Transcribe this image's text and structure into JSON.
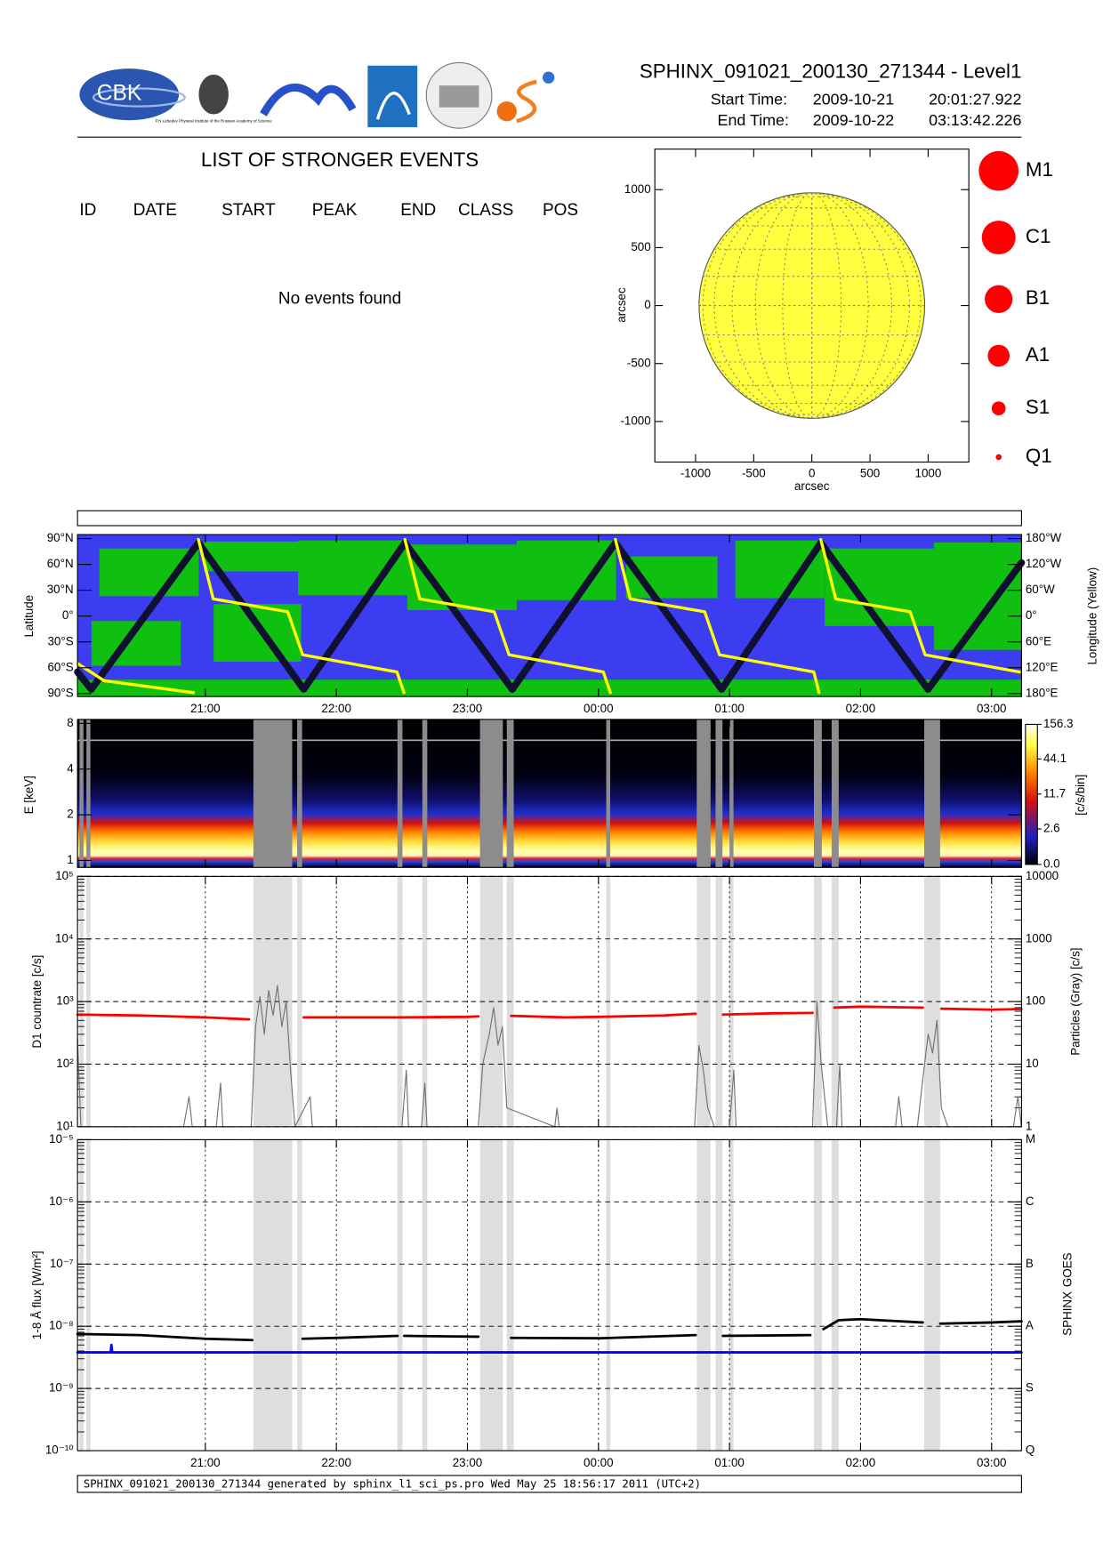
{
  "header": {
    "title": "SPHINX_091021_200130_271344 - Level1",
    "start_label": "Start Time:",
    "start_date": "2009-10-21",
    "start_time": "20:01:27.922",
    "end_label": "End Time:",
    "end_date": "2009-10-22",
    "end_time": "03:13:42.226"
  },
  "logos": {
    "cbk": "CBK",
    "lebedev": "P.N.Lebedev Physical Institute of the Russian Academy of Science"
  },
  "events": {
    "title": "LIST OF STRONGER EVENTS",
    "columns": [
      "ID",
      "DATE",
      "START",
      "PEAK",
      "END",
      "CLASS",
      "POS"
    ],
    "message": "No events found"
  },
  "chart_data": [
    {
      "type": "sun",
      "xlabel": "arcsec",
      "ylabel": "arcsec",
      "xlim": [
        -1350,
        1350
      ],
      "ylim": [
        -1350,
        1350
      ],
      "xticks": [
        -1000,
        -500,
        0,
        500,
        1000
      ],
      "yticks": [
        -1000,
        -500,
        0,
        500,
        1000
      ],
      "radius": 970,
      "disk_color": "#ffff40",
      "legend": [
        "M1",
        "C1",
        "B1",
        "A1",
        "S1",
        "Q1"
      ],
      "legend_color": "#ff0000"
    },
    {
      "type": "track",
      "ylabel": "Latitude",
      "y2label": "Longitude (Yellow)",
      "xlim": [
        "2009-10-21 20:01:27.922",
        "2009-10-22 03:13:42.226"
      ],
      "xticks": [
        {
          "value": "2009-10-21 21:00",
          "label": "21:00"
        },
        {
          "value": "2009-10-21 22:00",
          "label": "22:00"
        },
        {
          "value": "2009-10-21 23:00",
          "label": "23:00"
        },
        {
          "value": "2009-10-22 00:00",
          "label": "00:00"
        },
        {
          "value": "2009-10-22 01:00",
          "label": "01:00"
        },
        {
          "value": "2009-10-22 02:00",
          "label": "02:00"
        },
        {
          "value": "2009-10-22 03:00",
          "label": "03:00"
        }
      ],
      "ylim": [
        -90,
        90
      ],
      "yticks": [
        {
          "value": -90,
          "label": "90°S"
        },
        {
          "value": -60,
          "label": "60°S"
        },
        {
          "value": -30,
          "label": "30°S"
        },
        {
          "value": 0,
          "label": "0°"
        },
        {
          "value": 30,
          "label": "30°N"
        },
        {
          "value": 60,
          "label": "60°N"
        },
        {
          "value": 90,
          "label": "90°N"
        }
      ],
      "y2lim": [
        -180,
        180
      ],
      "y2ticks": [
        {
          "value": -180,
          "label": "180°E"
        },
        {
          "value": -120,
          "label": "120°E"
        },
        {
          "value": -60,
          "label": "60°E"
        },
        {
          "value": 0,
          "label": "0°"
        },
        {
          "value": 60,
          "label": "60°W"
        },
        {
          "value": 120,
          "label": "120°W"
        },
        {
          "value": 180,
          "label": "180°W"
        }
      ],
      "series": [
        {
          "color": "#101030",
          "x": [
            "2009-10-21 20:01:28",
            "2009-10-21 20:07:44",
            "2009-10-21 20:56:49",
            "2009-10-21 21:45:00",
            "2009-10-21 22:31:22",
            "2009-10-21 23:20:30",
            "2009-10-22 00:07:44",
            "2009-10-22 00:56:24",
            "2009-10-22 01:41:49",
            "2009-10-22 02:30:54",
            "2009-10-22 03:13:42"
          ],
          "values": [
            -65,
            -85,
            85,
            -85,
            85,
            -85,
            85,
            -85,
            85,
            -85,
            62
          ]
        },
        {
          "color": "#ffff00",
          "axis": "y2",
          "x": [
            "2009-10-21 20:01:28",
            "2009-10-21 20:13:38",
            "2009-10-21 20:54:33",
            "2009-10-21 20:56:00",
            "2009-10-21 20:56:49",
            "2009-10-21 21:03:38",
            "2009-10-21 21:37:44",
            "2009-10-21 21:44:33",
            "2009-10-21 22:27:44",
            "2009-10-21 22:30:55",
            "2009-10-21 22:31:10",
            "2009-10-21 22:31:22",
            "2009-10-21 22:38:11",
            "2009-10-21 23:12:16",
            "2009-10-21 23:19:05",
            "2009-10-22 00:02:16",
            "2009-10-22 00:05:27",
            "2009-10-22 00:06:30",
            "2009-10-22 00:07:44",
            "2009-10-22 00:14:33",
            "2009-10-22 00:48:38",
            "2009-10-22 00:55:27",
            "2009-10-22 01:38:38",
            "2009-10-22 01:41:00",
            "2009-10-22 01:41:30",
            "2009-10-22 01:41:49",
            "2009-10-22 01:48:38",
            "2009-10-22 02:22:44",
            "2009-10-22 02:29:33",
            "2009-10-22 03:12:44"
          ],
          "values": [
            -110,
            -150,
            -178,
            null,
            178,
            40,
            10,
            -90,
            -130,
            -178,
            null,
            178,
            40,
            10,
            -90,
            -130,
            -178,
            null,
            178,
            40,
            10,
            -90,
            -130,
            -178,
            null,
            178,
            40,
            10,
            -90,
            -130
          ]
        }
      ]
    },
    {
      "type": "heatmap",
      "ylabel": "E [keV]",
      "log": true,
      "ylim": [
        0.9,
        8.5
      ],
      "yticks": [
        1,
        2,
        4,
        8
      ],
      "colorbar_label": "[c/s/bin]",
      "clim": [
        0,
        156.3
      ],
      "cticks": [
        {
          "value": 0,
          "label": "0.0"
        },
        2.6,
        11.7,
        44.1,
        156.3
      ],
      "gaps": [
        [
          "2009-10-21 20:02:22",
          "2009-10-21 20:04:12"
        ],
        [
          "2009-10-21 20:05:33",
          "2009-10-21 20:07:22"
        ],
        [
          "2009-10-21 21:22:00",
          "2009-10-21 21:39:46"
        ],
        [
          "2009-10-21 21:42:02",
          "2009-10-21 21:44:18"
        ],
        [
          "2009-10-21 22:27:58",
          "2009-10-21 22:30:15"
        ],
        [
          "2009-10-21 22:39:21",
          "2009-10-21 22:41:37"
        ],
        [
          "2009-10-21 23:05:45",
          "2009-10-21 23:16:13"
        ],
        [
          "2009-10-21 23:18:01",
          "2009-10-21 23:21:12"
        ],
        [
          "2009-10-22 00:03:33",
          "2009-10-22 00:05:22"
        ],
        [
          "2009-10-22 00:45:00",
          "2009-10-22 00:51:20"
        ],
        [
          "2009-10-22 00:53:37",
          "2009-10-22 00:56:47"
        ],
        [
          "2009-10-22 01:00:00",
          "2009-10-22 01:01:49"
        ],
        [
          "2009-10-22 01:38:38",
          "2009-10-22 01:42:15"
        ],
        [
          "2009-10-22 01:46:46",
          "2009-10-22 01:50:00"
        ],
        [
          "2009-10-22 02:29:09",
          "2009-10-22 02:36:25"
        ]
      ]
    },
    {
      "type": "line",
      "log": true,
      "grid": true,
      "ylabel": "D1 countrate [c/s]",
      "y2label": "Particles (Gray) [c/s]",
      "ylim": [
        10,
        100000
      ],
      "yticks": [
        {
          "value": 10,
          "label": "10¹"
        },
        {
          "value": 100,
          "label": "10²"
        },
        {
          "value": 1000,
          "label": "10³"
        },
        {
          "value": 10000,
          "label": "10⁴"
        },
        {
          "value": 100000,
          "label": "10⁵"
        }
      ],
      "y2lim": [
        1,
        10000
      ],
      "y2ticks": [
        1,
        10,
        100,
        1000,
        10000
      ],
      "series": [
        {
          "color": "#ff0000",
          "x": [
            "2009-10-21 20:01:28",
            "2009-10-21 20:30:00",
            "2009-10-21 21:00:00",
            "2009-10-21 21:20:00",
            "2009-10-21 21:21:30",
            "2009-10-21 21:45:00",
            "2009-10-21 22:00:00",
            "2009-10-21 22:30:00",
            "2009-10-21 23:00:00",
            "2009-10-21 23:05:00",
            "2009-10-21 23:10:00",
            "2009-10-21 23:20:00",
            "2009-10-21 23:45:00",
            "2009-10-22 00:00:00",
            "2009-10-22 00:30:00",
            "2009-10-22 00:44:30",
            "2009-10-22 00:50:00",
            "2009-10-22 00:57:00",
            "2009-10-22 01:20:00",
            "2009-10-22 01:38:00",
            "2009-10-22 01:43:00",
            "2009-10-22 01:48:00",
            "2009-10-22 02:00:00",
            "2009-10-22 02:28:30",
            "2009-10-22 02:33:00",
            "2009-10-22 02:37:00",
            "2009-10-22 03:00:00",
            "2009-10-22 03:13:42"
          ],
          "values": [
            620,
            600,
            560,
            520,
            null,
            560,
            560,
            560,
            570,
            580,
            null,
            590,
            560,
            570,
            600,
            640,
            null,
            620,
            650,
            660,
            null,
            800,
            830,
            800,
            null,
            770,
            740,
            760
          ]
        },
        {
          "color": "#707070",
          "axis": "y2",
          "x": [
            "2009-10-21 20:01:30",
            "2009-10-21 20:02:00",
            "2009-10-21 20:03:00",
            "2009-10-21 20:50:00",
            "2009-10-21 20:52:30",
            "2009-10-21 20:54:00",
            "2009-10-21 21:05:00",
            "2009-10-21 21:07:00",
            "2009-10-21 21:08:00",
            "2009-10-21 21:21:00",
            "2009-10-21 21:23:00",
            "2009-10-21 21:25:00",
            "2009-10-21 21:27:00",
            "2009-10-21 21:29:00",
            "2009-10-21 21:31:00",
            "2009-10-21 21:33:00",
            "2009-10-21 21:35:00",
            "2009-10-21 21:37:00",
            "2009-10-21 21:39:00",
            "2009-10-21 21:41:00",
            "2009-10-21 21:48:00",
            "2009-10-21 21:49:00",
            "2009-10-21 22:30:00",
            "2009-10-21 22:32:00",
            "2009-10-21 22:33:00",
            "2009-10-21 22:39:00",
            "2009-10-21 22:40:30",
            "2009-10-21 22:41:30",
            "2009-10-21 23:05:00",
            "2009-10-21 23:07:00",
            "2009-10-21 23:10:00",
            "2009-10-21 23:12:00",
            "2009-10-21 23:14:00",
            "2009-10-21 23:16:00",
            "2009-10-21 23:18:00",
            "2009-10-21 23:40:00",
            "2009-10-21 23:41:00",
            "2009-10-21 23:42:00",
            "2009-10-22 00:44:00",
            "2009-10-22 00:46:00",
            "2009-10-22 00:48:00",
            "2009-10-22 00:50:00",
            "2009-10-22 00:53:00",
            "2009-10-22 01:00:00",
            "2009-10-22 01:02:00",
            "2009-10-22 01:03:00",
            "2009-10-22 01:38:00",
            "2009-10-22 01:40:00",
            "2009-10-22 01:42:00",
            "2009-10-22 01:45:00",
            "2009-10-22 01:49:00",
            "2009-10-22 01:50:30",
            "2009-10-22 01:51:30",
            "2009-10-22 02:16:00",
            "2009-10-22 02:17:30",
            "2009-10-22 02:19:00",
            "2009-10-22 02:26:00",
            "2009-10-22 02:29:00",
            "2009-10-22 02:31:00",
            "2009-10-22 02:33:00",
            "2009-10-22 02:35:00",
            "2009-10-22 02:37:00",
            "2009-10-22 02:40:00",
            "2009-10-22 03:10:00",
            "2009-10-22 03:12:00",
            "2009-10-22 03:13:40"
          ],
          "values": [
            25,
            8,
            1,
            1,
            3,
            1,
            1,
            5,
            1,
            1,
            40,
            120,
            30,
            150,
            60,
            180,
            40,
            100,
            8,
            1,
            3,
            1,
            1,
            8,
            1,
            1,
            5,
            1,
            1,
            10,
            30,
            80,
            20,
            40,
            2,
            1,
            2,
            1,
            1,
            20,
            8,
            2,
            1,
            1,
            8,
            1,
            1,
            100,
            10,
            1,
            1,
            10,
            1,
            1,
            3,
            1,
            1,
            8,
            30,
            15,
            50,
            2,
            1,
            1,
            3,
            1
          ]
        }
      ]
    },
    {
      "type": "line",
      "log": true,
      "grid": true,
      "ylabel": "1-8 Å flux [W/m²]",
      "ylim": [
        1e-10,
        1e-05
      ],
      "yticks": [
        {
          "value": 1e-10,
          "label": "10⁻¹⁰"
        },
        {
          "value": 1e-09,
          "label": "10⁻⁹"
        },
        {
          "value": 1e-08,
          "label": "10⁻⁸"
        },
        {
          "value": 1e-07,
          "label": "10⁻⁷"
        },
        {
          "value": 1e-06,
          "label": "10⁻⁶"
        },
        {
          "value": 1e-05,
          "label": "10⁻⁵"
        }
      ],
      "y2lim": [
        1e-10,
        1e-05
      ],
      "y2ticks": [
        {
          "value": 1e-10,
          "label": "Q"
        },
        {
          "value": 1e-09,
          "label": "S"
        },
        {
          "value": 1e-08,
          "label": "A"
        },
        {
          "value": 1e-07,
          "label": "B"
        },
        {
          "value": 1e-06,
          "label": "C"
        },
        {
          "value": 1e-05,
          "label": "M"
        }
      ],
      "series": [
        {
          "name": "SPHINX",
          "color": "#000000",
          "x": [
            "2009-10-21 20:01:28",
            "2009-10-21 20:30:00",
            "2009-10-21 21:00:00",
            "2009-10-21 21:21:30",
            "2009-10-21 21:22:30",
            "2009-10-21 21:44:30",
            "2009-10-21 22:00:00",
            "2009-10-21 22:28:00",
            "2009-10-21 22:29:30",
            "2009-10-21 22:31:00",
            "2009-10-21 23:05:00",
            "2009-10-21 23:06:00",
            "2009-10-21 23:20:00",
            "2009-10-22 00:00:00",
            "2009-10-22 00:44:30",
            "2009-10-22 00:45:30",
            "2009-10-22 00:57:00",
            "2009-10-22 01:37:00",
            "2009-10-22 01:38:30",
            "2009-10-22 01:43:00",
            "2009-10-22 01:50:00",
            "2009-10-22 02:00:00",
            "2009-10-22 02:28:30",
            "2009-10-22 02:29:30",
            "2009-10-22 02:36:30",
            "2009-10-22 03:00:00",
            "2009-10-22 03:13:42"
          ],
          "values": [
            7.5e-09,
            7.2e-09,
            6.3e-09,
            6e-09,
            null,
            6.3e-09,
            6.5e-09,
            7e-09,
            null,
            7e-09,
            6.8e-09,
            null,
            6.5e-09,
            6.4e-09,
            7.2e-09,
            null,
            7e-09,
            7.2e-09,
            null,
            9e-09,
            1.25e-08,
            1.3e-08,
            1.15e-08,
            null,
            1.1e-08,
            1.15e-08,
            1.2e-08
          ]
        },
        {
          "name": "GOES",
          "color": "#0000ff",
          "x": [
            "2009-10-21 20:01:28",
            "2009-10-21 20:16:40",
            "2009-10-21 20:17:00",
            "2009-10-21 20:17:20",
            "2009-10-22 03:13:42"
          ],
          "values": [
            3.8e-09,
            3.8e-09,
            5e-09,
            3.8e-09,
            3.8e-09
          ]
        }
      ]
    }
  ],
  "footer": {
    "text": "SPHINX_091021_200130_271344 generated by sphinx_l1_sci_ps.pro Wed May 25 18:56:17 2011 (UTC+2)"
  }
}
